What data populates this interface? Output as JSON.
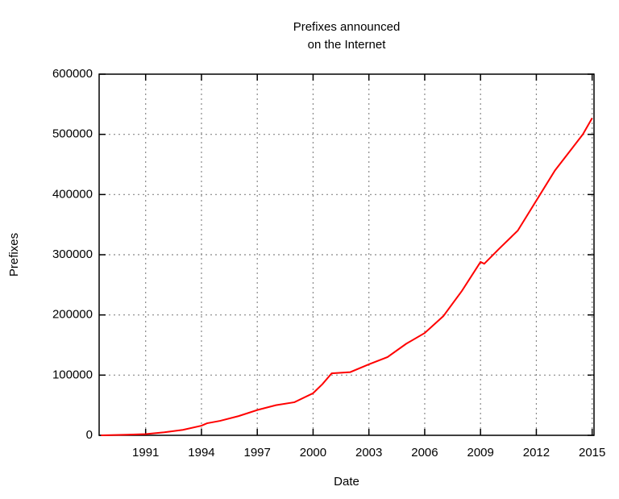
{
  "chart_data": {
    "type": "line",
    "title": [
      "Prefixes announced",
      "on the Internet"
    ],
    "x_label": "Date",
    "y_label": "Prefixes",
    "x": [
      1988.6,
      1990,
      1991,
      1992,
      1993,
      1994,
      1994.3,
      1995,
      1996,
      1997,
      1998,
      1999,
      2000,
      2000.5,
      2001,
      2002,
      2003,
      2004,
      2005,
      2006,
      2007,
      2008,
      2009,
      2009.2,
      2010,
      2011,
      2012,
      2013,
      2014,
      2014.5,
      2015
    ],
    "series": [
      {
        "name": "Prefixes",
        "color": "#ff0000",
        "values": [
          0,
          1000,
          2000,
          5000,
          9000,
          16000,
          20000,
          24000,
          32000,
          42000,
          50000,
          55000,
          70000,
          85000,
          103000,
          105000,
          118000,
          130000,
          152000,
          170000,
          198000,
          240000,
          288000,
          285000,
          310000,
          340000,
          390000,
          440000,
          480000,
          500000,
          527000
        ]
      }
    ],
    "xlim": [
      1988.5,
      2015.1
    ],
    "xticks": [
      1991,
      1994,
      1997,
      2000,
      2003,
      2006,
      2009,
      2012,
      2015
    ],
    "ylim": [
      0,
      600000
    ],
    "yticks": [
      0,
      100000,
      200000,
      300000,
      400000,
      500000,
      600000
    ],
    "grid": true
  }
}
